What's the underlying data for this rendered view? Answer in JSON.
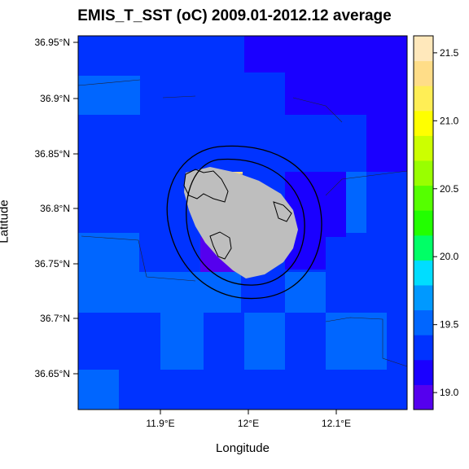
{
  "title": "EMIS_T_SST (oC) 2009.01-2012.12 average",
  "axes": {
    "xlabel": "Longitude",
    "ylabel": "Latitude",
    "xticks": [
      "11.9°E",
      "12°E",
      "12.1°E"
    ],
    "yticks": [
      "36.65°N",
      "36.7°N",
      "36.75°N",
      "36.8°N",
      "36.85°N",
      "36.9°N",
      "36.95°N"
    ]
  },
  "colorbar": {
    "labels": [
      "19.0",
      "19.5",
      "20.0",
      "20.5",
      "21.0",
      "21.5"
    ],
    "colors": [
      "#5500ee",
      "#1a00ff",
      "#0033ff",
      "#0066ff",
      "#0099ff",
      "#00ddff",
      "#00ff66",
      "#22ff00",
      "#55ff00",
      "#99ff00",
      "#ccff00",
      "#ffff00",
      "#ffee55",
      "#ffdd88",
      "#ffe8bb"
    ]
  },
  "palette": {
    "c_1900": "#1a00ff",
    "c_1925": "#0033ff",
    "c_1950": "#0066ff",
    "c_1875": "#5500ee",
    "land": "#bebebe"
  }
}
